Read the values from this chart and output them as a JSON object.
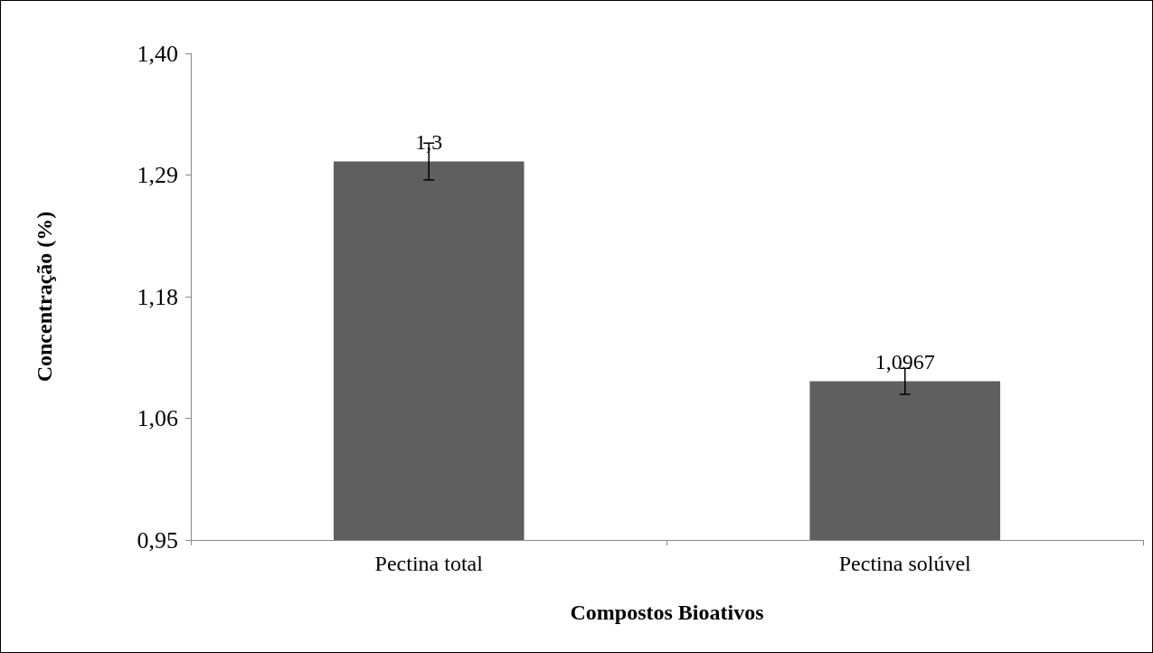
{
  "chart_data": {
    "type": "bar",
    "xlabel": "Compostos Bioativos",
    "ylabel": "Concentração (%)",
    "categories": [
      "Pectina total",
      "Pectina solúvel"
    ],
    "values": [
      1.3,
      1.0967
    ],
    "color": "#5f5f5f",
    "errors": [
      0.017,
      0.012
    ],
    "value_labels": [
      "1,3",
      "1,0967"
    ],
    "ylim": [
      0.95,
      1.4
    ],
    "yticks": [
      {
        "value": 0.95,
        "label": "0,95"
      },
      {
        "value": 1.0625,
        "label": "1,06"
      },
      {
        "value": 1.175,
        "label": "1,18"
      },
      {
        "value": 1.2875,
        "label": "1,29"
      },
      {
        "value": 1.4,
        "label": "1,40"
      }
    ],
    "grid": false
  }
}
